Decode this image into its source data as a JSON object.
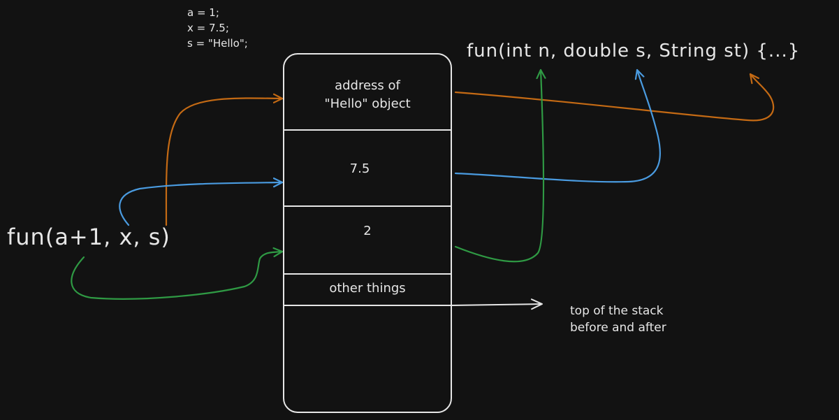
{
  "assignments": [
    "a = 1;",
    "x = 7.5;",
    "s = \"Hello\";"
  ],
  "call_expression": "fun(a+1, x, s)",
  "function_signature": "fun(int n, double s, String st) {...}",
  "stack": {
    "cells": [
      {
        "label": "address of\n\"Hello\" object",
        "links_to": "st"
      },
      {
        "label": "7.5",
        "links_to": "s"
      },
      {
        "label": "2",
        "links_to": "n"
      },
      {
        "label": "other things"
      }
    ]
  },
  "top_of_stack_note": "top of the stack\nbefore and after",
  "colors": {
    "background": "#121212",
    "text": "#e6e6e6",
    "orange": "#c46a14",
    "blue": "#4a9be0",
    "green": "#2f9a44",
    "white": "#e6e6e6"
  }
}
